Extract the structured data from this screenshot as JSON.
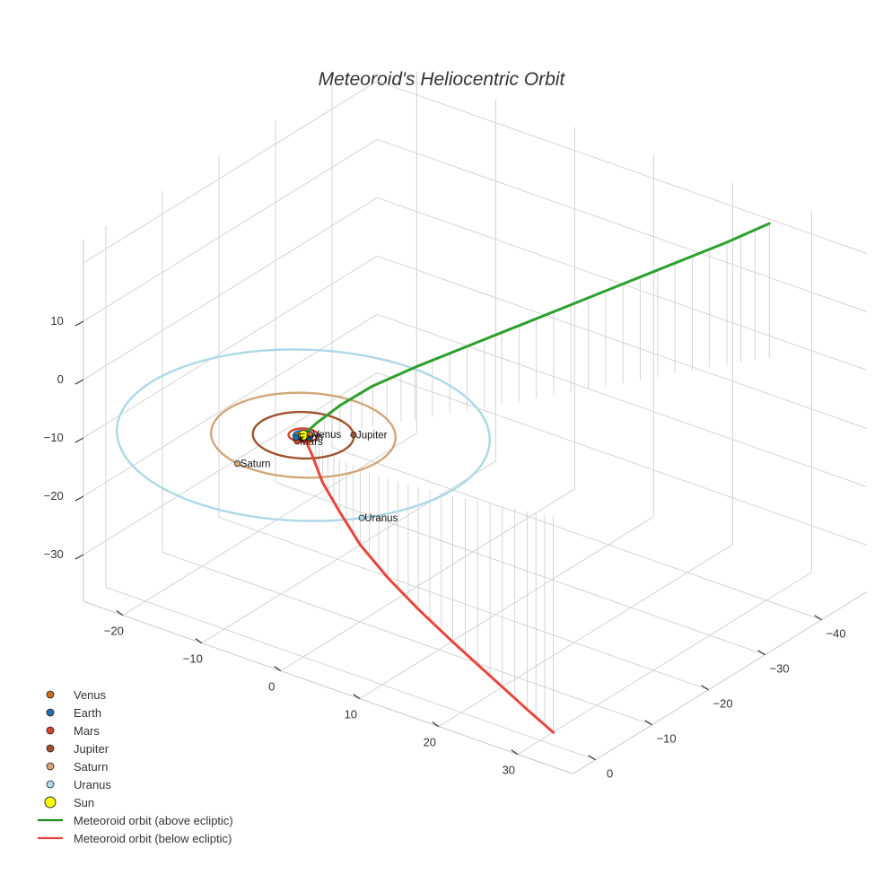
{
  "chart_data": {
    "type": "scatter3d",
    "title": "Meteoroid's Heliocentric Orbit",
    "axes": {
      "x": {
        "ticks": [
          -20,
          -10,
          0,
          10,
          20,
          30
        ]
      },
      "y": {
        "ticks": [
          -40,
          -30,
          -20,
          -10,
          0
        ]
      },
      "z": {
        "ticks": [
          10,
          0,
          -10,
          -20,
          -30
        ]
      }
    },
    "grid": true,
    "orbits": [
      {
        "name": "Venus",
        "radius": 0.72,
        "color": "#c87020"
      },
      {
        "name": "Earth",
        "radius": 1.0,
        "color": "#1f6fb4"
      },
      {
        "name": "Mars",
        "radius": 1.52,
        "color": "#d2452a"
      },
      {
        "name": "Jupiter",
        "radius": 5.2,
        "color": "#a0522d"
      },
      {
        "name": "Saturn",
        "radius": 9.5,
        "color": "#d2a679"
      },
      {
        "name": "Uranus",
        "radius": 19.2,
        "color": "#add8e6"
      }
    ],
    "planets": [
      {
        "name": "Mars",
        "x": 0.3,
        "y": 1.5,
        "z": 0,
        "color": "#d2452a",
        "label": "Mars"
      },
      {
        "name": "Venus",
        "x": 0.4,
        "y": -0.6,
        "z": 0,
        "color": "#c87020",
        "label": "Venus"
      },
      {
        "name": "Earth",
        "x": -0.3,
        "y": 0.9,
        "z": 0,
        "color": "#1f6fb4",
        "label": "Earth"
      },
      {
        "name": "Jupiter",
        "x": 4.0,
        "y": -3.3,
        "z": 0,
        "color": "#a0522d",
        "label": "Jupiter"
      },
      {
        "name": "Saturn",
        "x": -1.6,
        "y": 9.4,
        "z": 0,
        "color": "#d2a679",
        "label": "Saturn"
      },
      {
        "name": "Uranus",
        "x": 15.5,
        "y": 11.3,
        "z": 0,
        "color": "#add8e6",
        "label": "Uranus"
      }
    ],
    "sun": {
      "name": "Sun",
      "x": 0,
      "y": 0,
      "z": 0,
      "color": "#ffff00"
    },
    "meteoroid": {
      "above": {
        "name": "Meteoroid orbit (above ecliptic)",
        "color": "#2ca02c",
        "points": [
          [
            0,
            0,
            0
          ],
          [
            1,
            -1,
            2
          ],
          [
            2.5,
            -3,
            4.5
          ],
          [
            4.5,
            -6,
            7
          ],
          [
            7,
            -10,
            9
          ],
          [
            10,
            -15,
            11
          ],
          [
            13,
            -20,
            13
          ],
          [
            16,
            -25,
            15
          ],
          [
            19,
            -30,
            17
          ],
          [
            22,
            -35,
            19
          ],
          [
            25,
            -40,
            21
          ],
          [
            27.5,
            -44,
            23
          ]
        ]
      },
      "below": {
        "name": "Meteoroid orbit (below ecliptic)",
        "color": "#e8453c",
        "points": [
          [
            0,
            0,
            0
          ],
          [
            1.5,
            0.5,
            -2.5
          ],
          [
            3.5,
            1.5,
            -5.5
          ],
          [
            6,
            2,
            -9
          ],
          [
            9,
            2.5,
            -13
          ],
          [
            12.5,
            2.5,
            -17
          ],
          [
            16,
            2,
            -21
          ],
          [
            20,
            1.5,
            -25
          ],
          [
            24,
            0.5,
            -29.5
          ],
          [
            28,
            -0.5,
            -34
          ],
          [
            30.8,
            -1.2,
            -37
          ]
        ]
      }
    },
    "legend": {
      "placement": "bottom-left",
      "entries": [
        {
          "label": "Venus",
          "color": "#c87020",
          "kind": "marker"
        },
        {
          "label": "Earth",
          "color": "#1f6fb4",
          "kind": "marker"
        },
        {
          "label": "Mars",
          "color": "#d2452a",
          "kind": "marker"
        },
        {
          "label": "Jupiter",
          "color": "#a0522d",
          "kind": "marker"
        },
        {
          "label": "Saturn",
          "color": "#d2a679",
          "kind": "marker"
        },
        {
          "label": "Uranus",
          "color": "#add8e6",
          "kind": "marker"
        },
        {
          "label": "Sun",
          "color": "#ffff00",
          "kind": "sun"
        },
        {
          "label": "Meteoroid orbit (above ecliptic)",
          "color": "#1a8a1a",
          "kind": "line"
        },
        {
          "label": "Meteoroid orbit (below ecliptic)",
          "color": "#e8453c",
          "kind": "line"
        }
      ]
    }
  }
}
